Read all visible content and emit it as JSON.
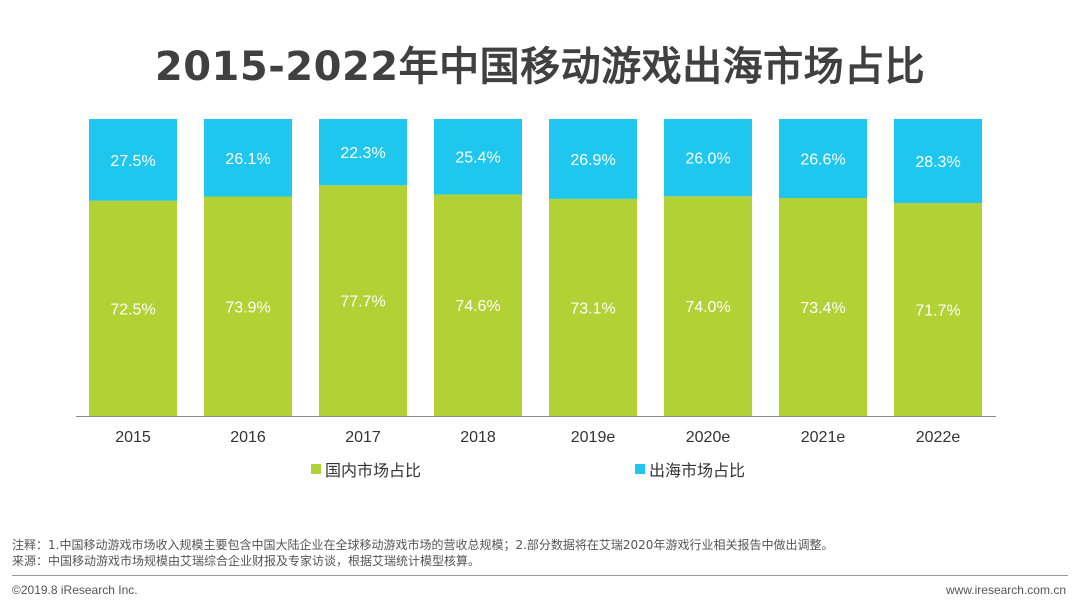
{
  "title": "2015-2022年中国移动游戏出海市场占比",
  "chart_data": {
    "type": "bar",
    "stacked": true,
    "percent": true,
    "categories": [
      "2015",
      "2016",
      "2017",
      "2018",
      "2019e",
      "2020e",
      "2021e",
      "2022e"
    ],
    "series": [
      {
        "name": "国内市场占比",
        "color": "#b1d135",
        "values": [
          72.5,
          73.9,
          77.7,
          74.6,
          73.1,
          74.0,
          73.4,
          71.7
        ],
        "labels": [
          "72.5%",
          "73.9%",
          "77.7%",
          "74.6%",
          "73.1%",
          "74.0%",
          "73.4%",
          "71.7%"
        ]
      },
      {
        "name": "出海市场占比",
        "color": "#1fc7ef",
        "values": [
          27.5,
          26.1,
          22.3,
          25.4,
          26.9,
          26.0,
          26.6,
          28.3
        ],
        "labels": [
          "27.5%",
          "26.1%",
          "22.3%",
          "25.4%",
          "26.9%",
          "26.0%",
          "26.6%",
          "28.3%"
        ]
      }
    ],
    "ylim": [
      0,
      100
    ],
    "legend": "bottom"
  },
  "notes": {
    "line1": "注释：1.中国移动游戏市场收入规模主要包含中国大陆企业在全球移动游戏市场的营收总规模；2.部分数据将在艾瑞2020年游戏行业相关报告中做出调整。",
    "line2": "来源：中国移动游戏市场规模由艾瑞综合企业财报及专家访谈，根据艾瑞统计模型核算。"
  },
  "footer": {
    "copyright": "©2019.8 iResearch Inc.",
    "website": "www.iresearch.com.cn"
  }
}
